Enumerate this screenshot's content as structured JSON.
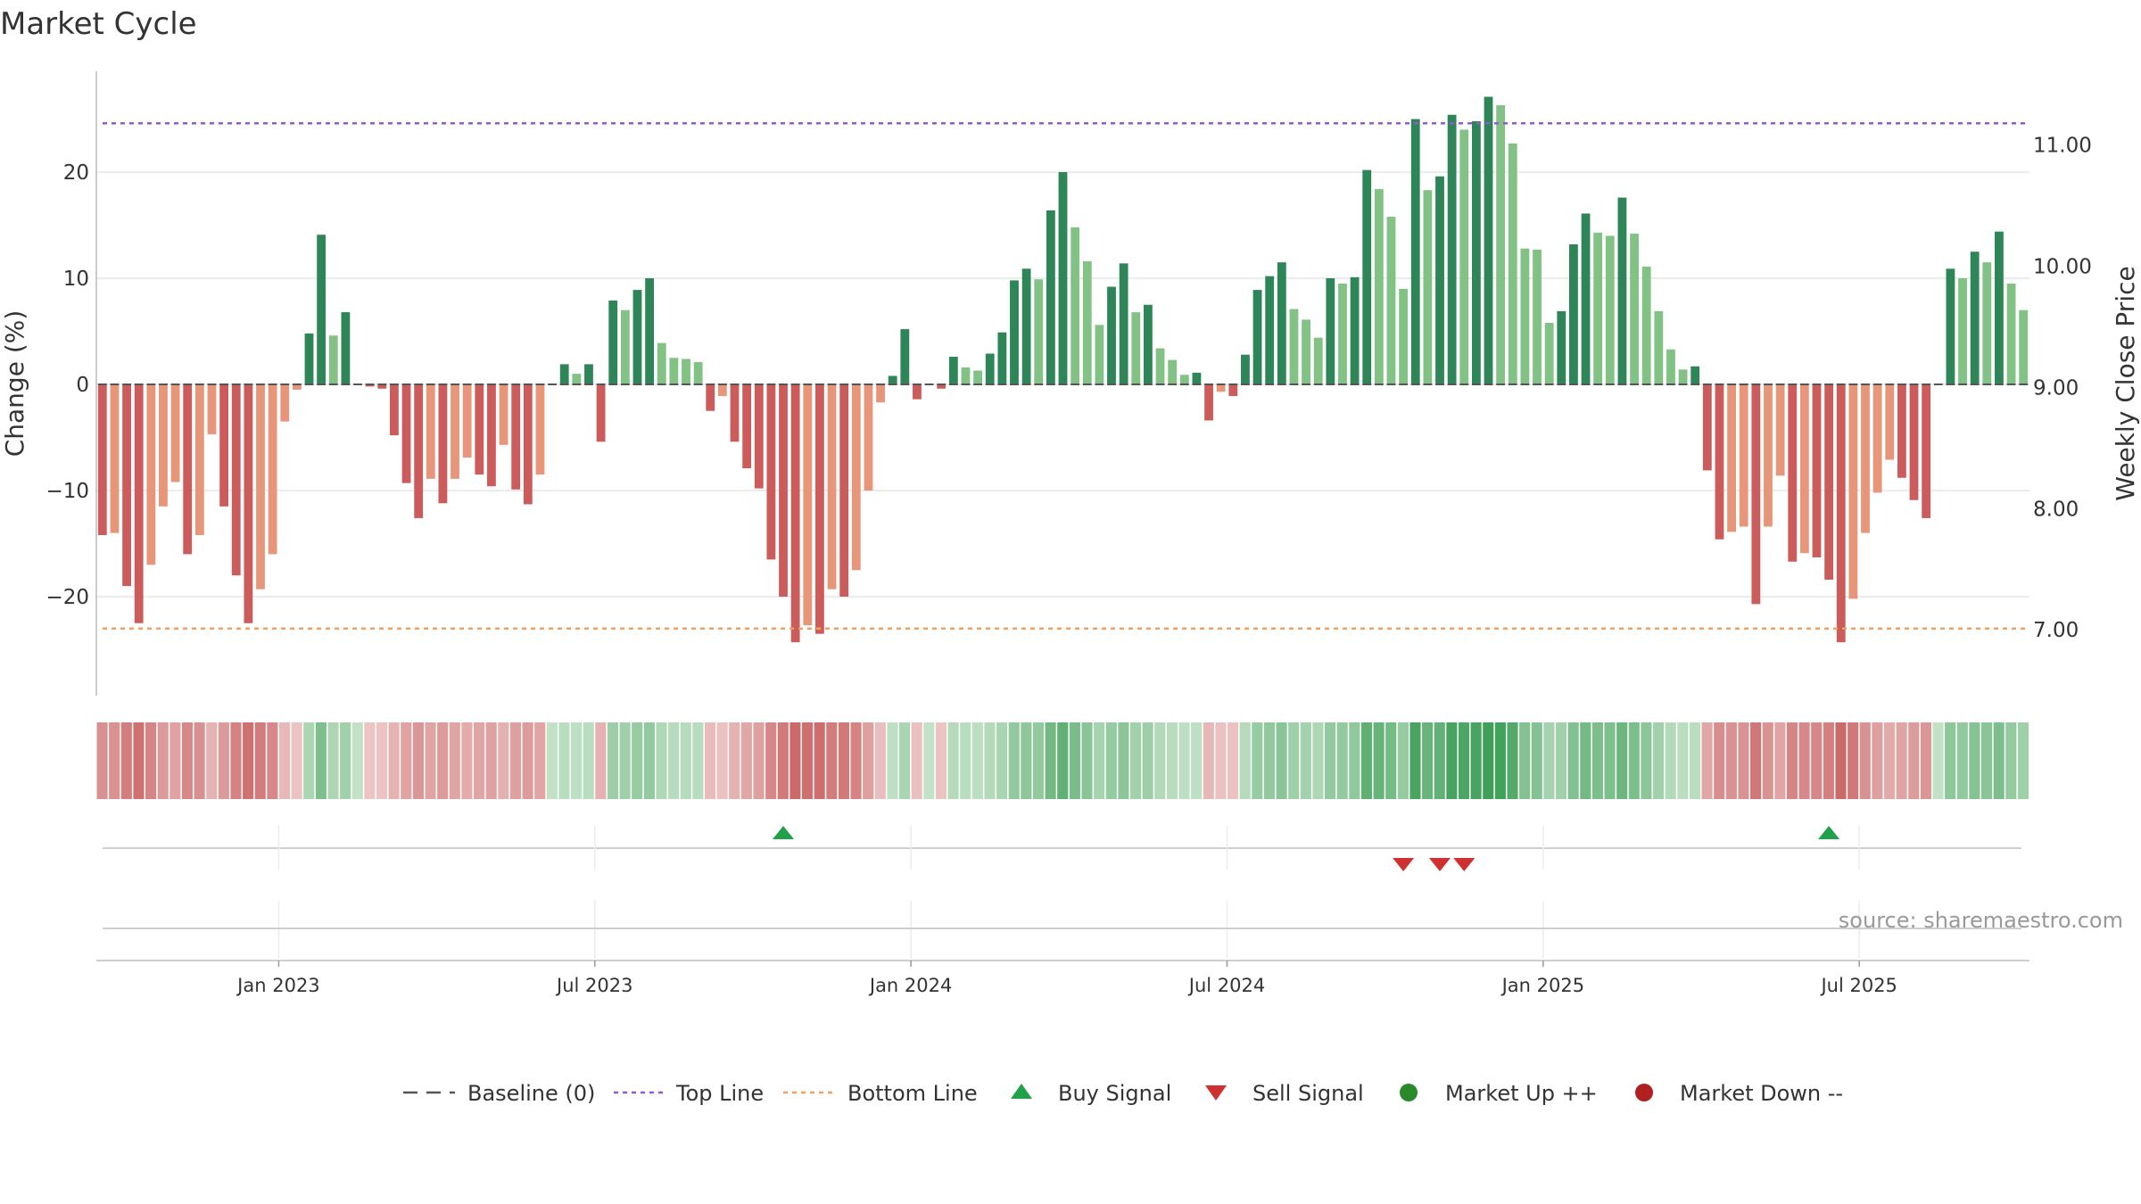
{
  "chart_data": {
    "type": "bar",
    "title": "Market Cycle",
    "ylabel": "Change (%)",
    "y2label": "Weekly Close Price",
    "ylim": [
      -29,
      29
    ],
    "y2lim": [
      6.45,
      11.6
    ],
    "yticks": [
      -20,
      -10,
      0,
      10,
      20
    ],
    "y2ticks": [
      7.0,
      8.0,
      9.0,
      10.0,
      11.0
    ],
    "ytick_labels": [
      "−20",
      "−10",
      "0",
      "10",
      "20"
    ],
    "y2tick_labels": [
      "7.00",
      "8.00",
      "9.00",
      "10.00",
      "11.00"
    ],
    "top_line": 24.6,
    "bottom_line": -23.0,
    "xticks": [
      {
        "label": "Jan 2023",
        "week": 15
      },
      {
        "label": "Jul 2023",
        "week": 41
      },
      {
        "label": "Jan 2024",
        "week": 67
      },
      {
        "label": "Jul 2024",
        "week": 93
      },
      {
        "label": "Jan 2025",
        "week": 119
      },
      {
        "label": "Jul 2025",
        "week": 145
      }
    ],
    "colors": {
      "up_strong": "#2e8557",
      "up_weak": "#82c285",
      "down_strong": "#cc5b5b",
      "down_weak": "#e8967a",
      "top_line": "#8e5ad6",
      "bottom_line": "#f0a060",
      "buy": "#22a04a",
      "sell": "#d03030",
      "market_up": "#2a8a2a",
      "market_down": "#b02020",
      "baseline": "#555555"
    },
    "values": [
      -14.2,
      -14,
      -19,
      -22.5,
      -17,
      -11.5,
      -9.2,
      -16,
      -14.2,
      -4.7,
      -11.5,
      -18,
      -22.5,
      -19.3,
      -16,
      -3.5,
      -0.5,
      4.8,
      14.1,
      4.6,
      6.8,
      0,
      -0.2,
      -0.4,
      -4.8,
      -9.3,
      -12.6,
      -8.9,
      -11.2,
      -8.9,
      -6.9,
      -8.5,
      -9.6,
      -5.7,
      -9.9,
      -11.3,
      -8.5,
      0,
      1.9,
      1,
      1.9,
      -5.4,
      7.9,
      7,
      8.9,
      10,
      3.9,
      2.5,
      2.4,
      2.1,
      -2.5,
      -1.1,
      -5.4,
      -7.9,
      -9.8,
      -16.5,
      -20,
      -24.3,
      -22.7,
      -23.5,
      -19.3,
      -20,
      -17.5,
      -10,
      -1.7,
      0.8,
      5.2,
      -1.4,
      0,
      -0.4,
      2.6,
      1.6,
      1.3,
      2.9,
      4.9,
      9.8,
      10.9,
      9.9,
      16.4,
      20,
      14.8,
      11.6,
      5.6,
      9.2,
      11.4,
      6.8,
      7.5,
      3.4,
      2.3,
      0.9,
      1.1,
      -3.4,
      -0.7,
      -1.1,
      2.8,
      8.9,
      10.2,
      11.5,
      7.1,
      6.1,
      4.4,
      10,
      9.5,
      10.1,
      20.2,
      18.4,
      15.8,
      9,
      25,
      18.3,
      19.6,
      25.4,
      24,
      24.8,
      27.1,
      26.3,
      22.7,
      12.8,
      12.7,
      5.8,
      6.9,
      13.2,
      16.1,
      14.3,
      14,
      17.6,
      14.2,
      11.1,
      6.9,
      3.3,
      1.4,
      1.7,
      -8.1,
      -14.6,
      -13.9,
      -13.4,
      -20.7,
      -13.4,
      -8.6,
      -16.7,
      -15.9,
      -16.3,
      -18.4,
      -24.3,
      -20.2,
      -14,
      -10.2,
      -7.1,
      -8.8,
      -10.9,
      -12.6,
      0,
      10.9,
      10,
      12.5,
      11.5,
      14.4,
      9.5,
      7
    ]
  },
  "signals": {
    "buy": [
      56,
      142
    ],
    "sell": [
      107,
      110,
      112
    ]
  },
  "source": "source: sharemaestro.com",
  "legend": [
    {
      "key": "baseline",
      "label": "Baseline (0)"
    },
    {
      "key": "top",
      "label": "Top Line"
    },
    {
      "key": "bottom",
      "label": "Bottom Line"
    },
    {
      "key": "buy",
      "label": "Buy Signal"
    },
    {
      "key": "sell",
      "label": "Sell Signal"
    },
    {
      "key": "up",
      "label": "Market Up ++"
    },
    {
      "key": "down",
      "label": "Market Down --"
    }
  ]
}
